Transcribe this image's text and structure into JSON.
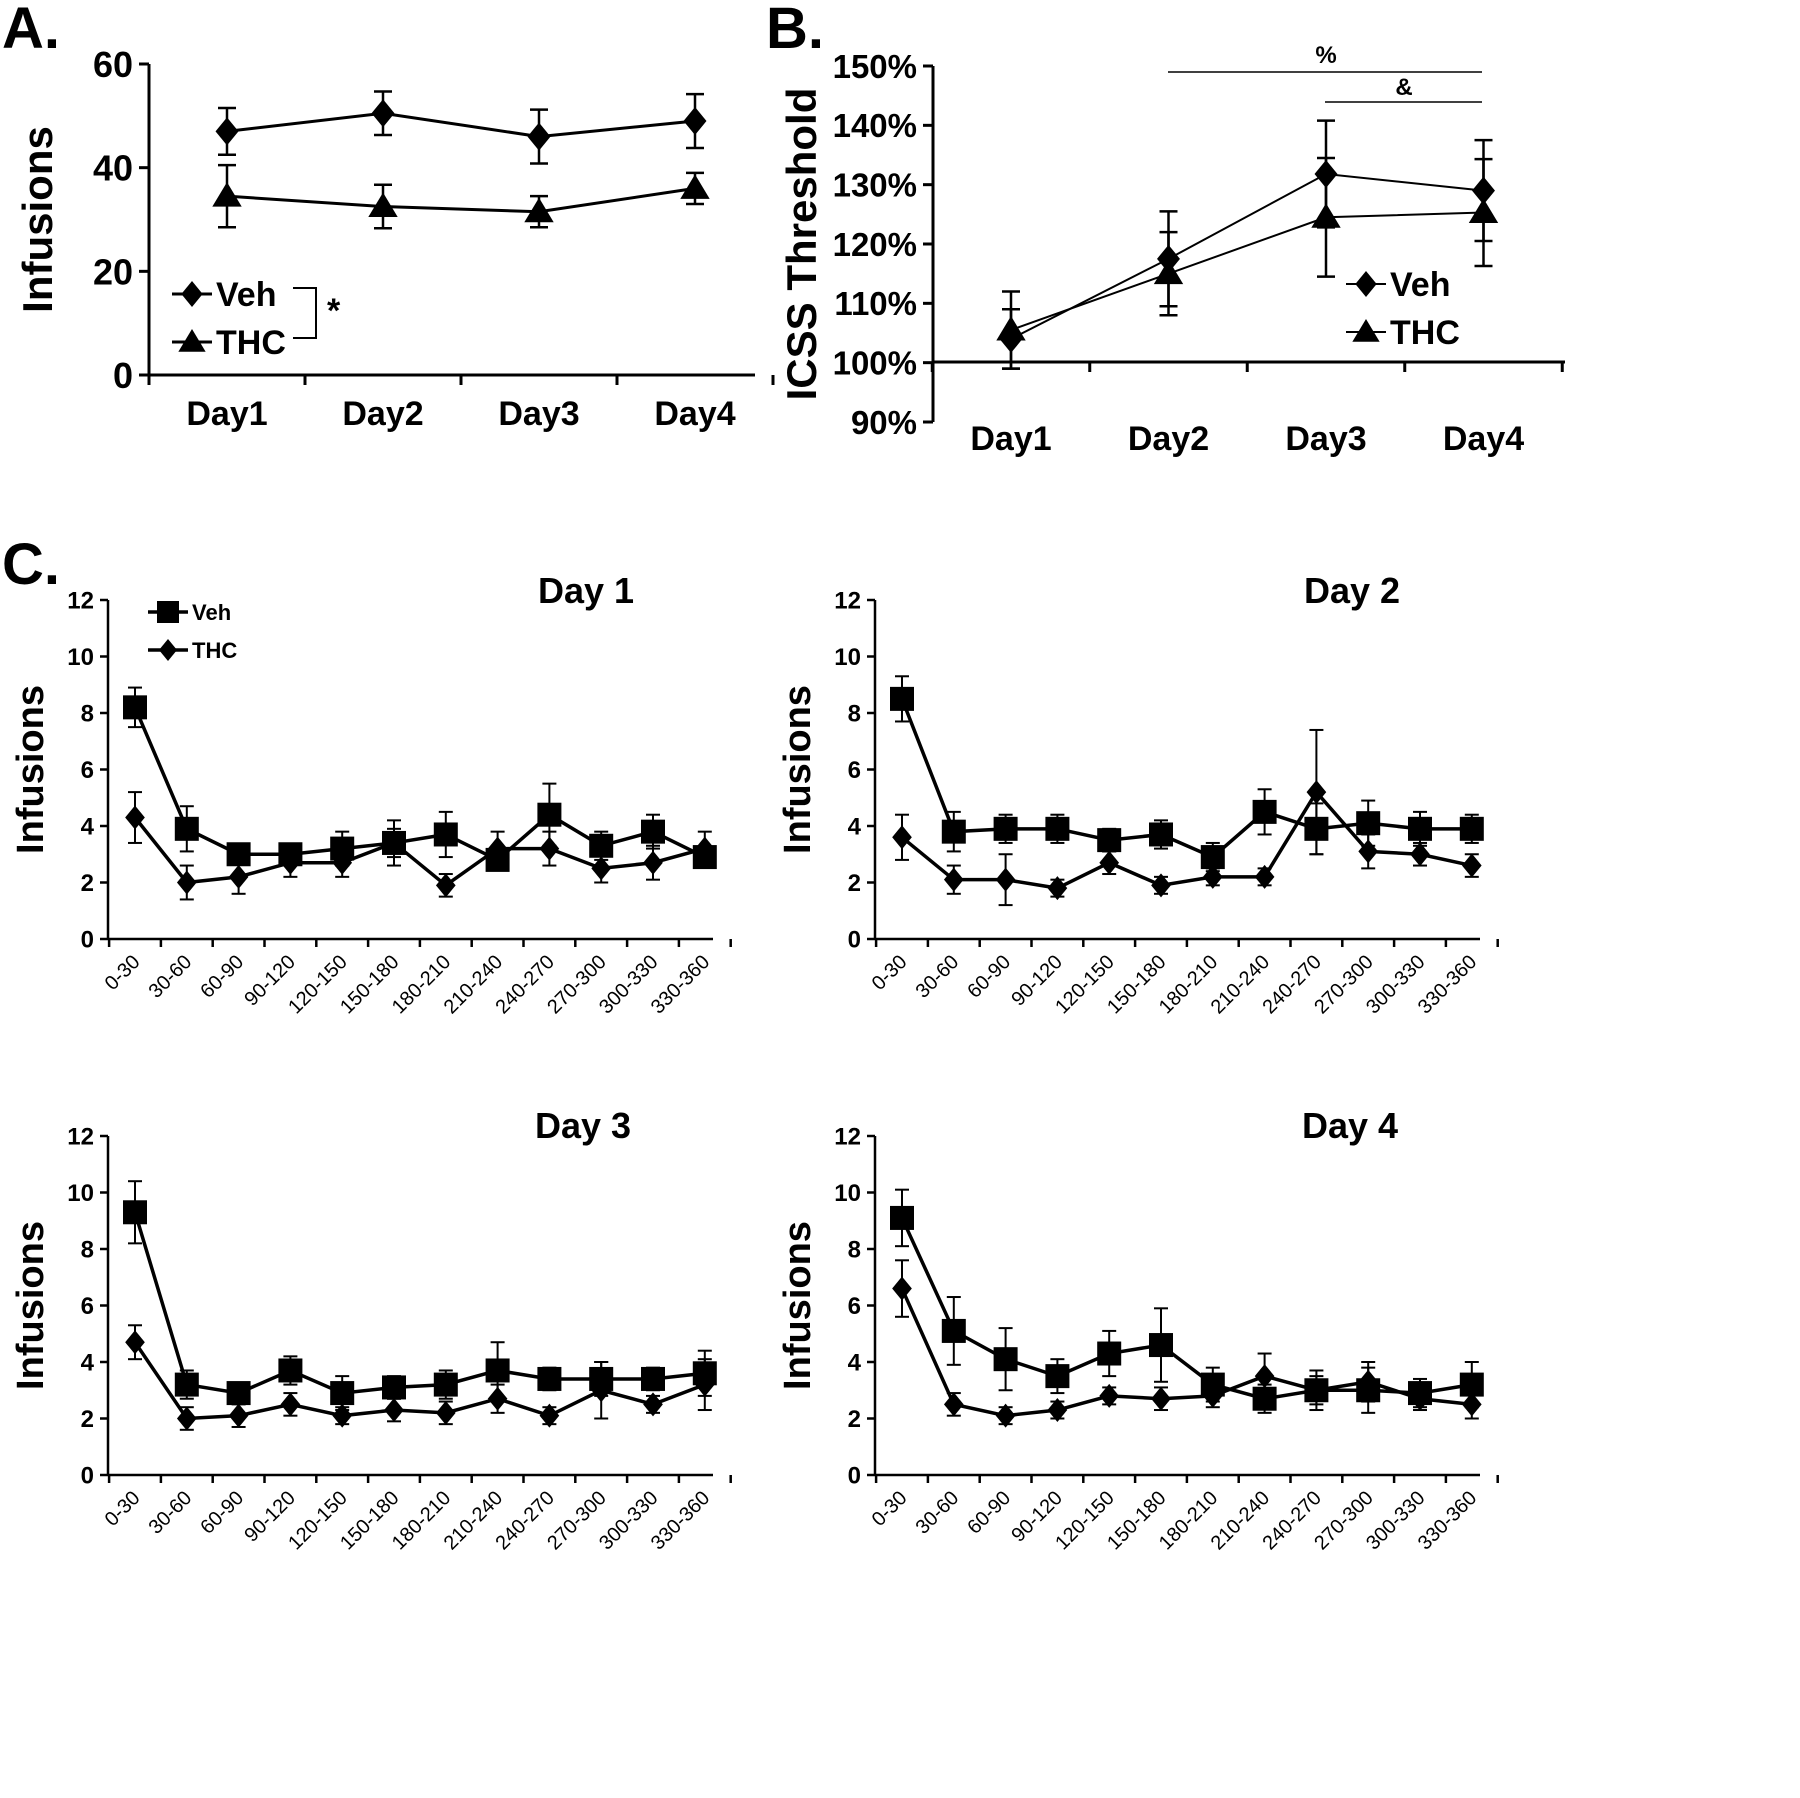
{
  "figure": {
    "panel_labels": [
      "A.",
      "B.",
      "C."
    ]
  },
  "chart_data": [
    {
      "id": "A",
      "type": "line",
      "title": "",
      "xlabel": "",
      "ylabel": "Infusions",
      "ylim": [
        0,
        60
      ],
      "yticks": [
        0,
        20,
        40,
        60
      ],
      "ytick_labels": [
        "0",
        "20",
        "40",
        "60"
      ],
      "categories": [
        "Day1",
        "Day2",
        "Day3",
        "Day4"
      ],
      "series": [
        {
          "name": "Veh",
          "marker": "diamond",
          "values": [
            47,
            50.5,
            46,
            49
          ],
          "errors": [
            4.5,
            4.2,
            5.2,
            5.2
          ]
        },
        {
          "name": "THC",
          "marker": "triangle",
          "values": [
            34.5,
            32.5,
            31.5,
            36
          ],
          "errors": [
            6,
            4.2,
            3,
            3
          ]
        }
      ],
      "annotations": [
        "*"
      ]
    },
    {
      "id": "B",
      "type": "line",
      "title": "",
      "xlabel": "",
      "ylabel": "ICSS Threshold",
      "ylim": [
        90,
        150
      ],
      "yticks": [
        90,
        100,
        110,
        120,
        130,
        140,
        150
      ],
      "ytick_labels": [
        "90%",
        "100%",
        "110%",
        "120%",
        "130%",
        "140%",
        "150%"
      ],
      "categories": [
        "Day1",
        "Day2",
        "Day3",
        "Day4"
      ],
      "series": [
        {
          "name": "Veh",
          "marker": "diamond",
          "values": [
            104,
            117.5,
            131.8,
            129
          ],
          "errors": [
            5,
            8,
            9,
            8.5
          ]
        },
        {
          "name": "THC",
          "marker": "triangle",
          "values": [
            105.5,
            115,
            124.5,
            125.3
          ],
          "errors": [
            6.5,
            7,
            10,
            9
          ]
        }
      ],
      "annotations": [
        "%",
        "&"
      ]
    },
    {
      "id": "C-Day1",
      "type": "line",
      "title": "Day 1",
      "xlabel": "",
      "ylabel": "Infusions",
      "ylim": [
        0,
        12
      ],
      "yticks": [
        0,
        2,
        4,
        6,
        8,
        10,
        12
      ],
      "ytick_labels": [
        "0",
        "2",
        "4",
        "6",
        "8",
        "10",
        "12"
      ],
      "categories": [
        "0-30",
        "30-60",
        "60-90",
        "90-120",
        "120-150",
        "150-180",
        "180-210",
        "210-240",
        "240-270",
        "270-300",
        "300-330",
        "330-360"
      ],
      "series": [
        {
          "name": "Veh",
          "marker": "square",
          "values": [
            8.2,
            3.9,
            3.0,
            3.0,
            3.2,
            3.4,
            3.7,
            2.8,
            4.4,
            3.3,
            3.8,
            2.9
          ],
          "errors": [
            0.7,
            0.8,
            0.3,
            0.3,
            0.6,
            0.8,
            0.8,
            0.3,
            1.1,
            0.5,
            0.6,
            0.3
          ]
        },
        {
          "name": "THC",
          "marker": "diamond",
          "values": [
            4.3,
            2.0,
            2.2,
            2.7,
            2.7,
            3.4,
            1.9,
            3.2,
            3.2,
            2.5,
            2.7,
            3.2
          ],
          "errors": [
            0.9,
            0.6,
            0.6,
            0.5,
            0.5,
            0.5,
            0.4,
            0.6,
            0.6,
            0.5,
            0.6,
            0.6
          ]
        }
      ]
    },
    {
      "id": "C-Day2",
      "type": "line",
      "title": "Day 2",
      "xlabel": "",
      "ylabel": "Infusions",
      "ylim": [
        0,
        12
      ],
      "yticks": [
        0,
        2,
        4,
        6,
        8,
        10,
        12
      ],
      "ytick_labels": [
        "0",
        "2",
        "4",
        "6",
        "8",
        "10",
        "12"
      ],
      "categories": [
        "0-30",
        "30-60",
        "60-90",
        "90-120",
        "120-150",
        "150-180",
        "180-210",
        "210-240",
        "240-270",
        "270-300",
        "300-330",
        "330-360"
      ],
      "series": [
        {
          "name": "Veh",
          "marker": "square",
          "values": [
            8.5,
            3.8,
            3.9,
            3.9,
            3.5,
            3.7,
            2.9,
            4.5,
            3.9,
            4.1,
            3.9,
            3.9
          ],
          "errors": [
            0.8,
            0.7,
            0.5,
            0.5,
            0.4,
            0.5,
            0.5,
            0.8,
            0.9,
            0.8,
            0.6,
            0.5
          ]
        },
        {
          "name": "THC",
          "marker": "diamond",
          "values": [
            3.6,
            2.1,
            2.1,
            1.8,
            2.7,
            1.9,
            2.2,
            2.2,
            5.2,
            3.1,
            3.0,
            2.6
          ],
          "errors": [
            0.8,
            0.5,
            0.9,
            0.3,
            0.4,
            0.3,
            0.3,
            0.3,
            2.2,
            0.6,
            0.4,
            0.4
          ]
        }
      ]
    },
    {
      "id": "C-Day3",
      "type": "line",
      "title": "Day 3",
      "xlabel": "",
      "ylabel": "Infusions",
      "ylim": [
        0,
        12
      ],
      "yticks": [
        0,
        2,
        4,
        6,
        8,
        10,
        12
      ],
      "ytick_labels": [
        "0",
        "2",
        "4",
        "6",
        "8",
        "10",
        "12"
      ],
      "categories": [
        "0-30",
        "30-60",
        "60-90",
        "90-120",
        "120-150",
        "150-180",
        "180-210",
        "210-240",
        "240-270",
        "270-300",
        "300-330",
        "330-360"
      ],
      "series": [
        {
          "name": "Veh",
          "marker": "square",
          "values": [
            9.3,
            3.2,
            2.9,
            3.7,
            2.9,
            3.1,
            3.2,
            3.7,
            3.4,
            3.4,
            3.4,
            3.6
          ],
          "errors": [
            1.1,
            0.5,
            0.3,
            0.5,
            0.6,
            0.4,
            0.5,
            1.0,
            0.4,
            0.6,
            0.4,
            0.8
          ]
        },
        {
          "name": "THC",
          "marker": "diamond",
          "values": [
            4.7,
            2.0,
            2.1,
            2.5,
            2.1,
            2.3,
            2.2,
            2.7,
            2.1,
            3.0,
            2.5,
            3.2
          ],
          "errors": [
            0.6,
            0.4,
            0.4,
            0.4,
            0.3,
            0.4,
            0.4,
            0.5,
            0.3,
            1.0,
            0.3,
            0.9
          ]
        }
      ]
    },
    {
      "id": "C-Day4",
      "type": "line",
      "title": "Day 4",
      "xlabel": "",
      "ylabel": "Infusions",
      "ylim": [
        0,
        12
      ],
      "yticks": [
        0,
        2,
        4,
        6,
        8,
        10,
        12
      ],
      "ytick_labels": [
        "0",
        "2",
        "4",
        "6",
        "8",
        "10",
        "12"
      ],
      "categories": [
        "0-30",
        "30-60",
        "60-90",
        "90-120",
        "120-150",
        "150-180",
        "180-210",
        "210-240",
        "240-270",
        "270-300",
        "300-330",
        "330-360"
      ],
      "series": [
        {
          "name": "Veh",
          "marker": "square",
          "values": [
            9.1,
            5.1,
            4.1,
            3.5,
            4.3,
            4.6,
            3.2,
            2.7,
            3.0,
            3.0,
            2.9,
            3.2
          ],
          "errors": [
            1.0,
            1.2,
            1.1,
            0.6,
            0.8,
            1.3,
            0.6,
            0.5,
            0.7,
            0.8,
            0.5,
            0.8
          ]
        },
        {
          "name": "THC",
          "marker": "diamond",
          "values": [
            6.6,
            2.5,
            2.1,
            2.3,
            2.8,
            2.7,
            2.8,
            3.5,
            3.0,
            3.3,
            2.7,
            2.5
          ],
          "errors": [
            1.0,
            0.4,
            0.3,
            0.3,
            0.3,
            0.4,
            0.4,
            0.8,
            0.5,
            0.7,
            0.4,
            0.5
          ]
        }
      ]
    }
  ]
}
